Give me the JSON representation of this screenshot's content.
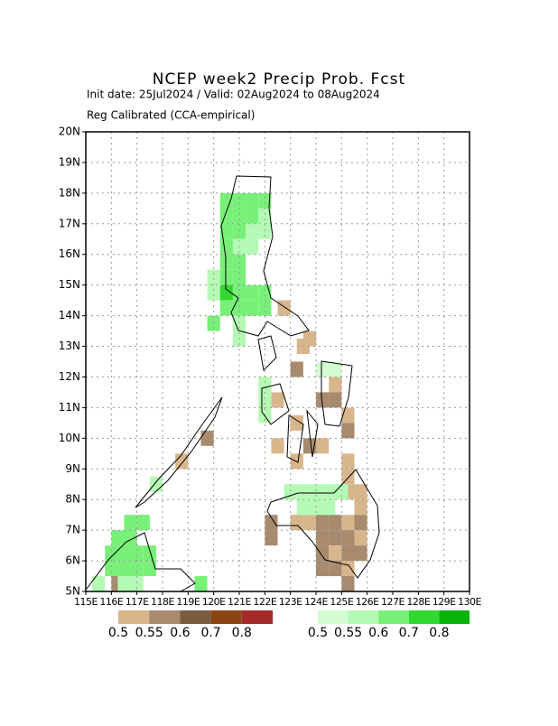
{
  "chart_data": {
    "type": "heatmap",
    "title": "NCEP week2 Precip Prob. Fcst",
    "subtitle": "Init date: 25Jul2024 / Valid: 02Aug2024 to 08Aug2024",
    "method": "Reg Calibrated (CCA-empirical)",
    "xlim": [
      115,
      130
    ],
    "ylim": [
      5,
      20
    ],
    "grid": true,
    "cell_size": 0.5,
    "xticks": [
      {
        "value": 115,
        "label": "115E"
      },
      {
        "value": 116,
        "label": "116E"
      },
      {
        "value": 117,
        "label": "117E"
      },
      {
        "value": 118,
        "label": "118E"
      },
      {
        "value": 119,
        "label": "119E"
      },
      {
        "value": 120,
        "label": "120E"
      },
      {
        "value": 121,
        "label": "121E"
      },
      {
        "value": 122,
        "label": "122E"
      },
      {
        "value": 123,
        "label": "123E"
      },
      {
        "value": 124,
        "label": "124E"
      },
      {
        "value": 125,
        "label": "125E"
      },
      {
        "value": 126,
        "label": "126E"
      },
      {
        "value": 127,
        "label": "127E"
      },
      {
        "value": 128,
        "label": "128E"
      },
      {
        "value": 129,
        "label": "129E"
      },
      {
        "value": 130,
        "label": "130E"
      }
    ],
    "yticks": [
      {
        "value": 5,
        "label": "5N"
      },
      {
        "value": 6,
        "label": "6N"
      },
      {
        "value": 7,
        "label": "7N"
      },
      {
        "value": 8,
        "label": "8N"
      },
      {
        "value": 9,
        "label": "9N"
      },
      {
        "value": 10,
        "label": "10N"
      },
      {
        "value": 11,
        "label": "11N"
      },
      {
        "value": 12,
        "label": "12N"
      },
      {
        "value": 13,
        "label": "13N"
      },
      {
        "value": 14,
        "label": "14N"
      },
      {
        "value": 15,
        "label": "15N"
      },
      {
        "value": 16,
        "label": "16N"
      },
      {
        "value": 17,
        "label": "17N"
      },
      {
        "value": 18,
        "label": "18N"
      },
      {
        "value": 19,
        "label": "19N"
      },
      {
        "value": 20,
        "label": "20N"
      }
    ],
    "below": {
      "levels": [
        0.5,
        0.55,
        0.6,
        0.7,
        0.8
      ],
      "colors": [
        "#d8b68c",
        "#a88b6e",
        "#7b5c40",
        "#8b4513",
        "#a52a2a"
      ],
      "cells": [
        [
          122.75,
          14.25,
          0.52
        ],
        [
          123.5,
          13.0,
          0.52
        ],
        [
          123.75,
          13.25,
          0.52
        ],
        [
          123.25,
          12.25,
          0.57
        ],
        [
          124.75,
          11.75,
          0.52
        ],
        [
          122.5,
          11.25,
          0.52
        ],
        [
          124.25,
          11.25,
          0.57
        ],
        [
          124.75,
          11.25,
          0.57
        ],
        [
          125.25,
          10.75,
          0.52
        ],
        [
          123.25,
          10.5,
          0.52
        ],
        [
          125.25,
          10.25,
          0.57
        ],
        [
          122.5,
          9.75,
          0.52
        ],
        [
          123.75,
          9.75,
          0.57
        ],
        [
          124.25,
          9.75,
          0.52
        ],
        [
          119.75,
          10.0,
          0.57
        ],
        [
          118.75,
          9.25,
          0.52
        ],
        [
          123.25,
          9.25,
          0.52
        ],
        [
          125.25,
          9.25,
          0.52
        ],
        [
          125.25,
          8.75,
          0.52
        ],
        [
          125.25,
          8.25,
          0.52
        ],
        [
          125.75,
          8.25,
          0.52
        ],
        [
          125.75,
          7.75,
          0.52
        ],
        [
          122.25,
          7.25,
          0.57
        ],
        [
          123.25,
          7.25,
          0.52
        ],
        [
          123.75,
          7.25,
          0.52
        ],
        [
          124.25,
          7.25,
          0.57
        ],
        [
          124.75,
          7.25,
          0.57
        ],
        [
          125.25,
          7.25,
          0.52
        ],
        [
          125.75,
          7.25,
          0.57
        ],
        [
          122.25,
          6.75,
          0.57
        ],
        [
          124.25,
          6.75,
          0.57
        ],
        [
          124.75,
          6.75,
          0.57
        ],
        [
          125.25,
          6.75,
          0.57
        ],
        [
          125.75,
          6.75,
          0.52
        ],
        [
          124.25,
          6.25,
          0.57
        ],
        [
          124.75,
          6.25,
          0.52
        ],
        [
          125.25,
          6.25,
          0.57
        ],
        [
          125.75,
          6.25,
          0.57
        ],
        [
          124.25,
          5.75,
          0.57
        ],
        [
          124.75,
          5.75,
          0.57
        ],
        [
          125.25,
          5.75,
          0.52
        ],
        [
          125.25,
          5.25,
          0.57
        ],
        [
          116.25,
          5.25,
          0.57
        ]
      ]
    },
    "above": {
      "levels": [
        0.5,
        0.55,
        0.6,
        0.7,
        0.8
      ],
      "colors": [
        "#d2fcd2",
        "#b4fab4",
        "#78f078",
        "#32d732",
        "#0ab40a"
      ],
      "cells": [
        [
          120.5,
          17.75,
          0.65
        ],
        [
          121.0,
          17.75,
          0.65
        ],
        [
          121.5,
          17.75,
          0.65
        ],
        [
          122.0,
          17.75,
          0.65
        ],
        [
          120.5,
          17.25,
          0.65
        ],
        [
          121.0,
          17.25,
          0.65
        ],
        [
          121.5,
          17.25,
          0.65
        ],
        [
          122.0,
          17.25,
          0.57
        ],
        [
          120.5,
          16.75,
          0.65
        ],
        [
          121.0,
          16.75,
          0.65
        ],
        [
          121.5,
          16.75,
          0.57
        ],
        [
          122.0,
          16.75,
          0.57
        ],
        [
          120.5,
          16.25,
          0.65
        ],
        [
          121.0,
          16.25,
          0.57
        ],
        [
          121.5,
          16.25,
          0.57
        ],
        [
          120.5,
          15.75,
          0.65
        ],
        [
          121.0,
          15.75,
          0.65
        ],
        [
          120.0,
          15.25,
          0.57
        ],
        [
          120.5,
          15.25,
          0.65
        ],
        [
          121.0,
          15.25,
          0.65
        ],
        [
          120.0,
          14.75,
          0.57
        ],
        [
          120.5,
          14.75,
          0.75
        ],
        [
          121.0,
          14.75,
          0.65
        ],
        [
          121.5,
          14.75,
          0.65
        ],
        [
          122.0,
          14.75,
          0.65
        ],
        [
          120.5,
          14.25,
          0.65
        ],
        [
          121.0,
          14.25,
          0.65
        ],
        [
          121.5,
          14.25,
          0.65
        ],
        [
          122.0,
          14.25,
          0.65
        ],
        [
          120.0,
          13.75,
          0.65
        ],
        [
          121.0,
          13.75,
          0.57
        ],
        [
          121.0,
          13.25,
          0.57
        ],
        [
          122.0,
          11.75,
          0.57
        ],
        [
          122.0,
          11.25,
          0.57
        ],
        [
          122.0,
          10.75,
          0.57
        ],
        [
          124.25,
          12.25,
          0.52
        ],
        [
          124.75,
          12.25,
          0.52
        ],
        [
          117.75,
          8.5,
          0.57
        ],
        [
          123.0,
          8.25,
          0.57
        ],
        [
          123.5,
          8.25,
          0.57
        ],
        [
          124.0,
          8.25,
          0.57
        ],
        [
          124.5,
          8.25,
          0.57
        ],
        [
          125.0,
          8.25,
          0.57
        ],
        [
          123.5,
          7.75,
          0.57
        ],
        [
          124.0,
          7.75,
          0.57
        ],
        [
          124.5,
          7.75,
          0.57
        ],
        [
          116.75,
          7.25,
          0.65
        ],
        [
          117.25,
          7.25,
          0.65
        ],
        [
          116.25,
          6.75,
          0.65
        ],
        [
          116.75,
          6.75,
          0.65
        ],
        [
          116.0,
          6.25,
          0.65
        ],
        [
          116.5,
          6.25,
          0.65
        ],
        [
          117.0,
          6.25,
          0.65
        ],
        [
          117.5,
          6.25,
          0.65
        ],
        [
          116.0,
          5.75,
          0.65
        ],
        [
          116.5,
          5.75,
          0.65
        ],
        [
          117.0,
          5.75,
          0.65
        ],
        [
          117.5,
          5.75,
          0.65
        ],
        [
          115.5,
          5.25,
          0.57
        ],
        [
          116.5,
          5.25,
          0.57
        ],
        [
          117.0,
          5.25,
          0.57
        ],
        [
          119.5,
          5.25,
          0.65
        ]
      ]
    }
  }
}
